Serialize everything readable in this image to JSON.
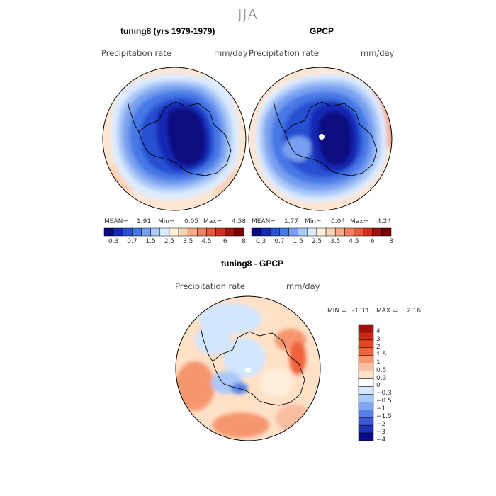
{
  "figure": {
    "title": "JJA"
  },
  "chart_data": [
    {
      "type": "heatmap",
      "panel": "model",
      "title": "tuning8 (yrs 1979-1979)",
      "variable": "Precipitation rate",
      "units": "mm/day",
      "projection": "south polar stereographic",
      "stats": {
        "mean_label": "MEAN=",
        "mean": "1.91",
        "min_label": "Min=",
        "min": "0.05",
        "max_label": "Max=",
        "max": "4.58"
      },
      "colorbar_levels": [
        0.3,
        0.7,
        1.5,
        2.5,
        3.5,
        4.5,
        6,
        8
      ],
      "colorbar_labels": [
        "0.3",
        "0.7",
        "1.5",
        "2.5",
        "3.5",
        "4.5",
        "6",
        "8"
      ]
    },
    {
      "type": "heatmap",
      "panel": "observations",
      "title": "GPCP",
      "variable": "Precipitation rate",
      "units": "mm/day",
      "projection": "south polar stereographic",
      "stats": {
        "mean_label": "MEAN=",
        "mean": "1.77",
        "min_label": "Min=",
        "min": "0.04",
        "max_label": "Max=",
        "max": "4.24"
      },
      "colorbar_levels": [
        0.3,
        0.7,
        1.5,
        2.5,
        3.5,
        4.5,
        6,
        8
      ],
      "colorbar_labels": [
        "0.3",
        "0.7",
        "1.5",
        "2.5",
        "3.5",
        "4.5",
        "6",
        "8"
      ]
    },
    {
      "type": "heatmap",
      "panel": "difference",
      "title": "tuning8 - GPCP",
      "variable": "Precipitation rate",
      "units": "mm/day",
      "projection": "south polar stereographic",
      "stats": {
        "min_label": "MIN =",
        "min": "-1.33",
        "max_label": "MAX =",
        "max": "2.16"
      },
      "colorbar_levels": [
        4,
        3,
        2,
        1.5,
        1,
        0.5,
        0.3,
        0,
        -0.3,
        -0.5,
        -1,
        -1.5,
        -2,
        -3,
        -4
      ],
      "colorbar_labels": [
        "4",
        "3",
        "2",
        "1.5",
        "1",
        "0.5",
        "0.3",
        "0",
        "−0.3",
        "−0.5",
        "−1",
        "−1.5",
        "−2",
        "−3",
        "−4"
      ]
    }
  ],
  "colors": {
    "precip_scale": [
      "#0a0a80",
      "#1428b4",
      "#2850d2",
      "#4678e6",
      "#78a0f0",
      "#aac8f8",
      "#dcebff",
      "#fff0dc",
      "#fcd2b4",
      "#f8aa88",
      "#f08062",
      "#e65a3c",
      "#cd321e",
      "#a01410",
      "#780000"
    ],
    "diff_scale": [
      "#a01010",
      "#c82814",
      "#e6461e",
      "#f0643c",
      "#f5966e",
      "#fabea0",
      "#ffe1c8",
      "#ffffff",
      "#d2e6ff",
      "#aac8fa",
      "#82a5f0",
      "#5a82e6",
      "#3c5ad7",
      "#1e32b9",
      "#0a0a8c"
    ]
  }
}
